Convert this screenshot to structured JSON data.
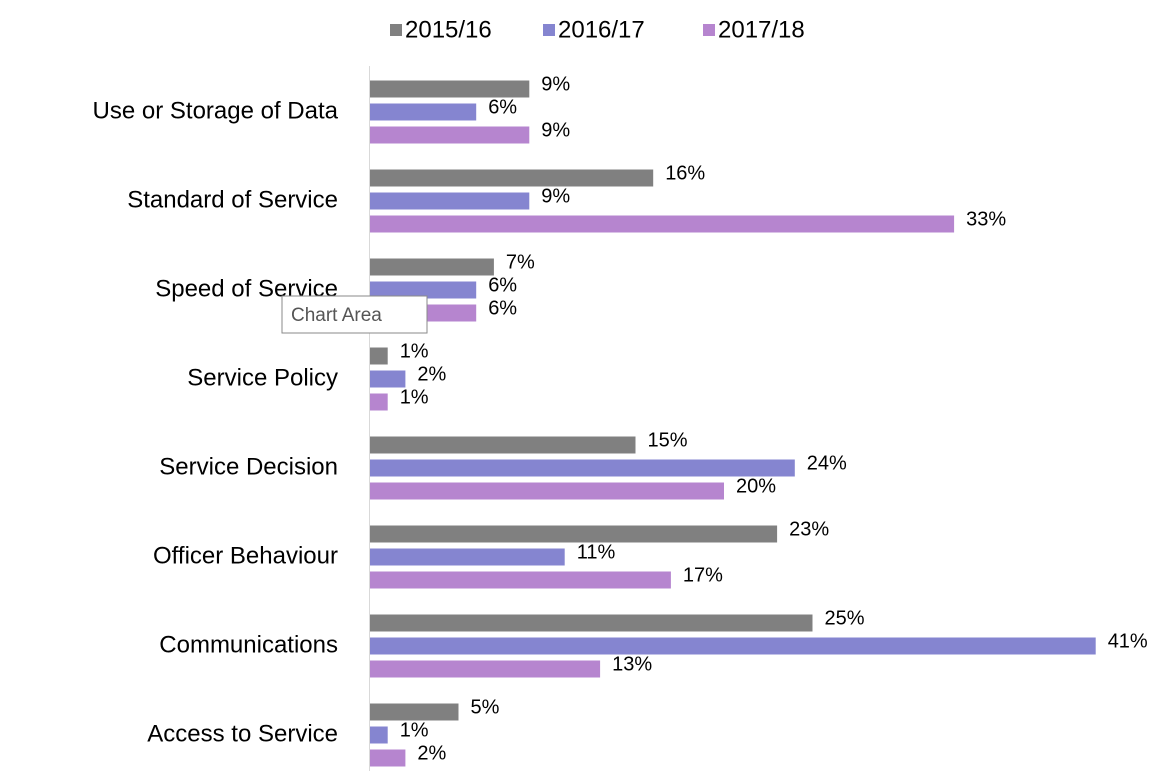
{
  "chart_data": {
    "type": "bar",
    "orientation": "horizontal",
    "categories": [
      "Use or Storage of Data",
      "Standard of Service",
      "Speed of Service",
      "Service Policy",
      "Service Decision",
      "Officer Behaviour",
      "Communications",
      "Access to Service"
    ],
    "series": [
      {
        "name": "2015/16",
        "color": "#808080",
        "values": [
          9,
          16,
          7,
          1,
          15,
          23,
          25,
          5
        ],
        "value_labels": [
          "9%",
          "16%",
          "7%",
          "1%",
          "15%",
          "23%",
          "25%",
          "5%"
        ]
      },
      {
        "name": "2016/17",
        "color": "#8585d0",
        "values": [
          6,
          9,
          6,
          2,
          24,
          11,
          41,
          1
        ],
        "value_labels": [
          "6%",
          "9%",
          "6%",
          "2%",
          "24%",
          "11%",
          "41%",
          "1%"
        ]
      },
      {
        "name": "2017/18",
        "color": "#b685cf",
        "values": [
          9,
          33,
          6,
          1,
          20,
          17,
          13,
          2
        ],
        "value_labels": [
          "9%",
          "33%",
          "6%",
          "1%",
          "20%",
          "17%",
          "13%",
          "2%"
        ]
      }
    ],
    "legend": "top",
    "tooltip": "Chart Area"
  }
}
